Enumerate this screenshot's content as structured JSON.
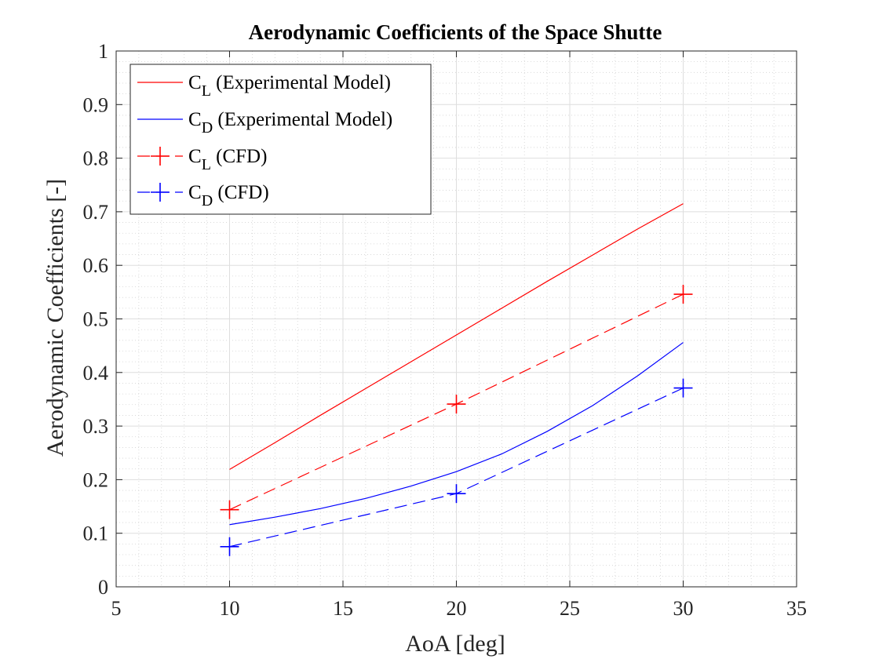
{
  "chart_data": {
    "type": "line",
    "title": "Aerodynamic Coefficients of the Space Shutte",
    "xlabel": "AoA [deg]",
    "ylabel": "Aerodynamic Coefficients [-]",
    "xlim": [
      5,
      35
    ],
    "ylim": [
      0,
      1
    ],
    "xticks": [
      5,
      10,
      15,
      20,
      25,
      30,
      35
    ],
    "yticks": [
      0,
      0.1,
      0.2,
      0.3,
      0.4,
      0.5,
      0.6,
      0.7,
      0.8,
      0.9,
      1
    ],
    "grid": "major and minor, dotted",
    "legend_position": "top-left",
    "series": [
      {
        "name": "C_L (Experimental Model)",
        "legend_main": "C",
        "legend_sub": "L",
        "legend_rest": " (Experimental Model)",
        "color": "#ff0000",
        "line_style": "solid",
        "marker": "none",
        "x": [
          10,
          12,
          14,
          16,
          18,
          20,
          22,
          24,
          26,
          28,
          30
        ],
        "y": [
          0.219,
          0.269,
          0.32,
          0.37,
          0.42,
          0.47,
          0.52,
          0.57,
          0.619,
          0.668,
          0.715
        ]
      },
      {
        "name": "C_D (Experimental Model)",
        "legend_main": "C",
        "legend_sub": "D",
        "legend_rest": " (Experimental Model)",
        "color": "#0000ff",
        "line_style": "solid",
        "marker": "none",
        "x": [
          10,
          12,
          14,
          16,
          18,
          20,
          22,
          24,
          26,
          28,
          30
        ],
        "y": [
          0.116,
          0.13,
          0.146,
          0.165,
          0.188,
          0.215,
          0.248,
          0.29,
          0.338,
          0.394,
          0.456
        ]
      },
      {
        "name": "C_L (CFD)",
        "legend_main": "C",
        "legend_sub": "L",
        "legend_rest": " (CFD)",
        "color": "#ff0000",
        "line_style": "dashed",
        "marker": "plus",
        "x": [
          10,
          20,
          30
        ],
        "y": [
          0.144,
          0.341,
          0.546
        ]
      },
      {
        "name": "C_D (CFD)",
        "legend_main": "C",
        "legend_sub": "D",
        "legend_rest": " (CFD)",
        "color": "#0000ff",
        "line_style": "dashed",
        "marker": "plus",
        "x": [
          10,
          20,
          30
        ],
        "y": [
          0.075,
          0.174,
          0.371
        ]
      }
    ]
  }
}
